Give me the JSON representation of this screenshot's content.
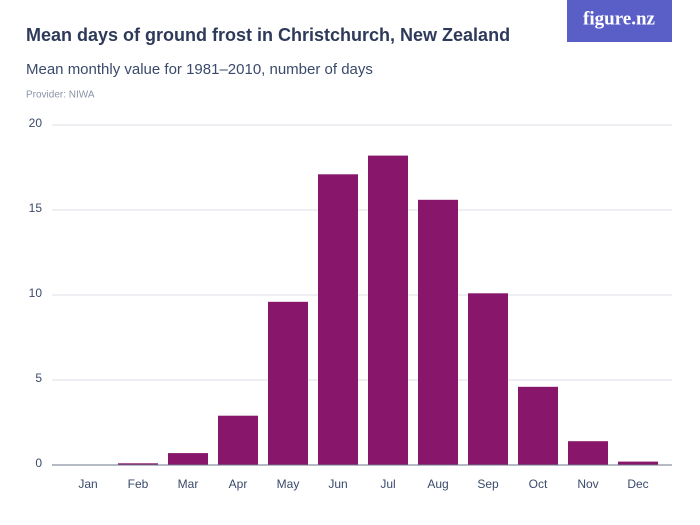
{
  "logo": "figure.nz",
  "chart_data": {
    "type": "bar",
    "title": "Mean days of ground frost in Christchurch, New Zealand",
    "subtitle": "Mean monthly value for 1981–2010, number of days",
    "provider": "Provider: NIWA",
    "categories": [
      "Jan",
      "Feb",
      "Mar",
      "Apr",
      "May",
      "Jun",
      "Jul",
      "Aug",
      "Sep",
      "Oct",
      "Nov",
      "Dec"
    ],
    "values": [
      0,
      0.1,
      0.7,
      2.9,
      9.6,
      17.1,
      18.2,
      15.6,
      10.1,
      4.6,
      1.4,
      0.2
    ],
    "color": "#88176c",
    "ylim": [
      0,
      20
    ],
    "yticks": [
      0,
      5,
      10,
      15,
      20
    ],
    "grid": true
  }
}
